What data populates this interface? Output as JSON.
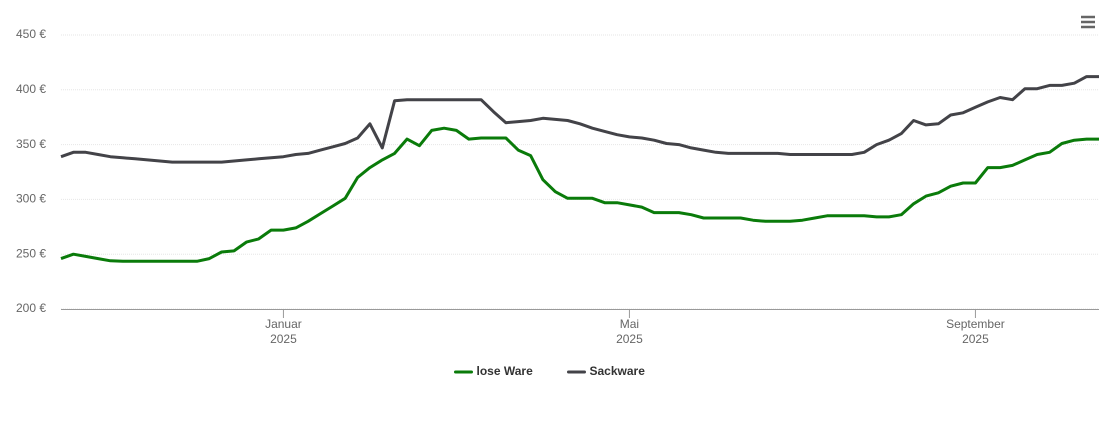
{
  "chart_data": {
    "type": "line",
    "categories": [
      null,
      null,
      null,
      null,
      null,
      null,
      null,
      null,
      null,
      null,
      null,
      null,
      null,
      null,
      null,
      null,
      null,
      null,
      [
        "Januar",
        "2025"
      ],
      null,
      null,
      null,
      null,
      null,
      null,
      null,
      null,
      null,
      null,
      null,
      null,
      null,
      null,
      null,
      null,
      null,
      null,
      null,
      null,
      null,
      null,
      null,
      null,
      null,
      null,
      null,
      [
        "Mai",
        "2025"
      ],
      null,
      null,
      null,
      null,
      null,
      null,
      null,
      null,
      null,
      null,
      null,
      null,
      null,
      null,
      null,
      null,
      null,
      null,
      null,
      null,
      null,
      null,
      null,
      null,
      null,
      null,
      null,
      [
        "September",
        "2025"
      ],
      null,
      null,
      null,
      null,
      null,
      null,
      null,
      null,
      null,
      null
    ],
    "series": [
      {
        "name": "lose Ware",
        "color": "#0a7b0a",
        "values": [
          246,
          250,
          248,
          246,
          244,
          243.5,
          243.5,
          243.5,
          243.5,
          243.5,
          243.5,
          243.5,
          246,
          252,
          253,
          261,
          264,
          272,
          272,
          274,
          280,
          287,
          294,
          301,
          320,
          329,
          336,
          342,
          355,
          349,
          363,
          365,
          363,
          355,
          356,
          356,
          356,
          345,
          340,
          318,
          307,
          301,
          301,
          301,
          297,
          297,
          295,
          293,
          288,
          288,
          288,
          286,
          283,
          283,
          283,
          283,
          281,
          280,
          280,
          280,
          281,
          283,
          285,
          285,
          285,
          285,
          284,
          284,
          286,
          296,
          303,
          306,
          312,
          315,
          315,
          329,
          329,
          331,
          336,
          341,
          343,
          351,
          354,
          355,
          355
        ]
      },
      {
        "name": "Sackware",
        "color": "#434348",
        "values": [
          339,
          343,
          343,
          341,
          339,
          338,
          337,
          336,
          335,
          334,
          334,
          334,
          334,
          334,
          335,
          336,
          337,
          338,
          339,
          341,
          342,
          345,
          348,
          351,
          356,
          369,
          347,
          390,
          391,
          391,
          391,
          391,
          391,
          391,
          391,
          380,
          370,
          371,
          372,
          374,
          373,
          372,
          369,
          365,
          362,
          359,
          357,
          356,
          354,
          351,
          350,
          347,
          345,
          343,
          342,
          342,
          342,
          342,
          342,
          341,
          341,
          341,
          341,
          341,
          341,
          343,
          350,
          354,
          360,
          372,
          368,
          369,
          377,
          379,
          384,
          389,
          393,
          391,
          401,
          401,
          404,
          404,
          406,
          412,
          412
        ]
      }
    ],
    "ylim": [
      200,
      450
    ],
    "yticks": [
      {
        "value": 200,
        "label": "200 €"
      },
      {
        "value": 250,
        "label": "250 €"
      },
      {
        "value": 300,
        "label": "300 €"
      },
      {
        "value": 350,
        "label": "350 €"
      },
      {
        "value": 400,
        "label": "400 €"
      },
      {
        "value": 450,
        "label": "450 €"
      }
    ],
    "grid": true,
    "legend": "bottom"
  }
}
